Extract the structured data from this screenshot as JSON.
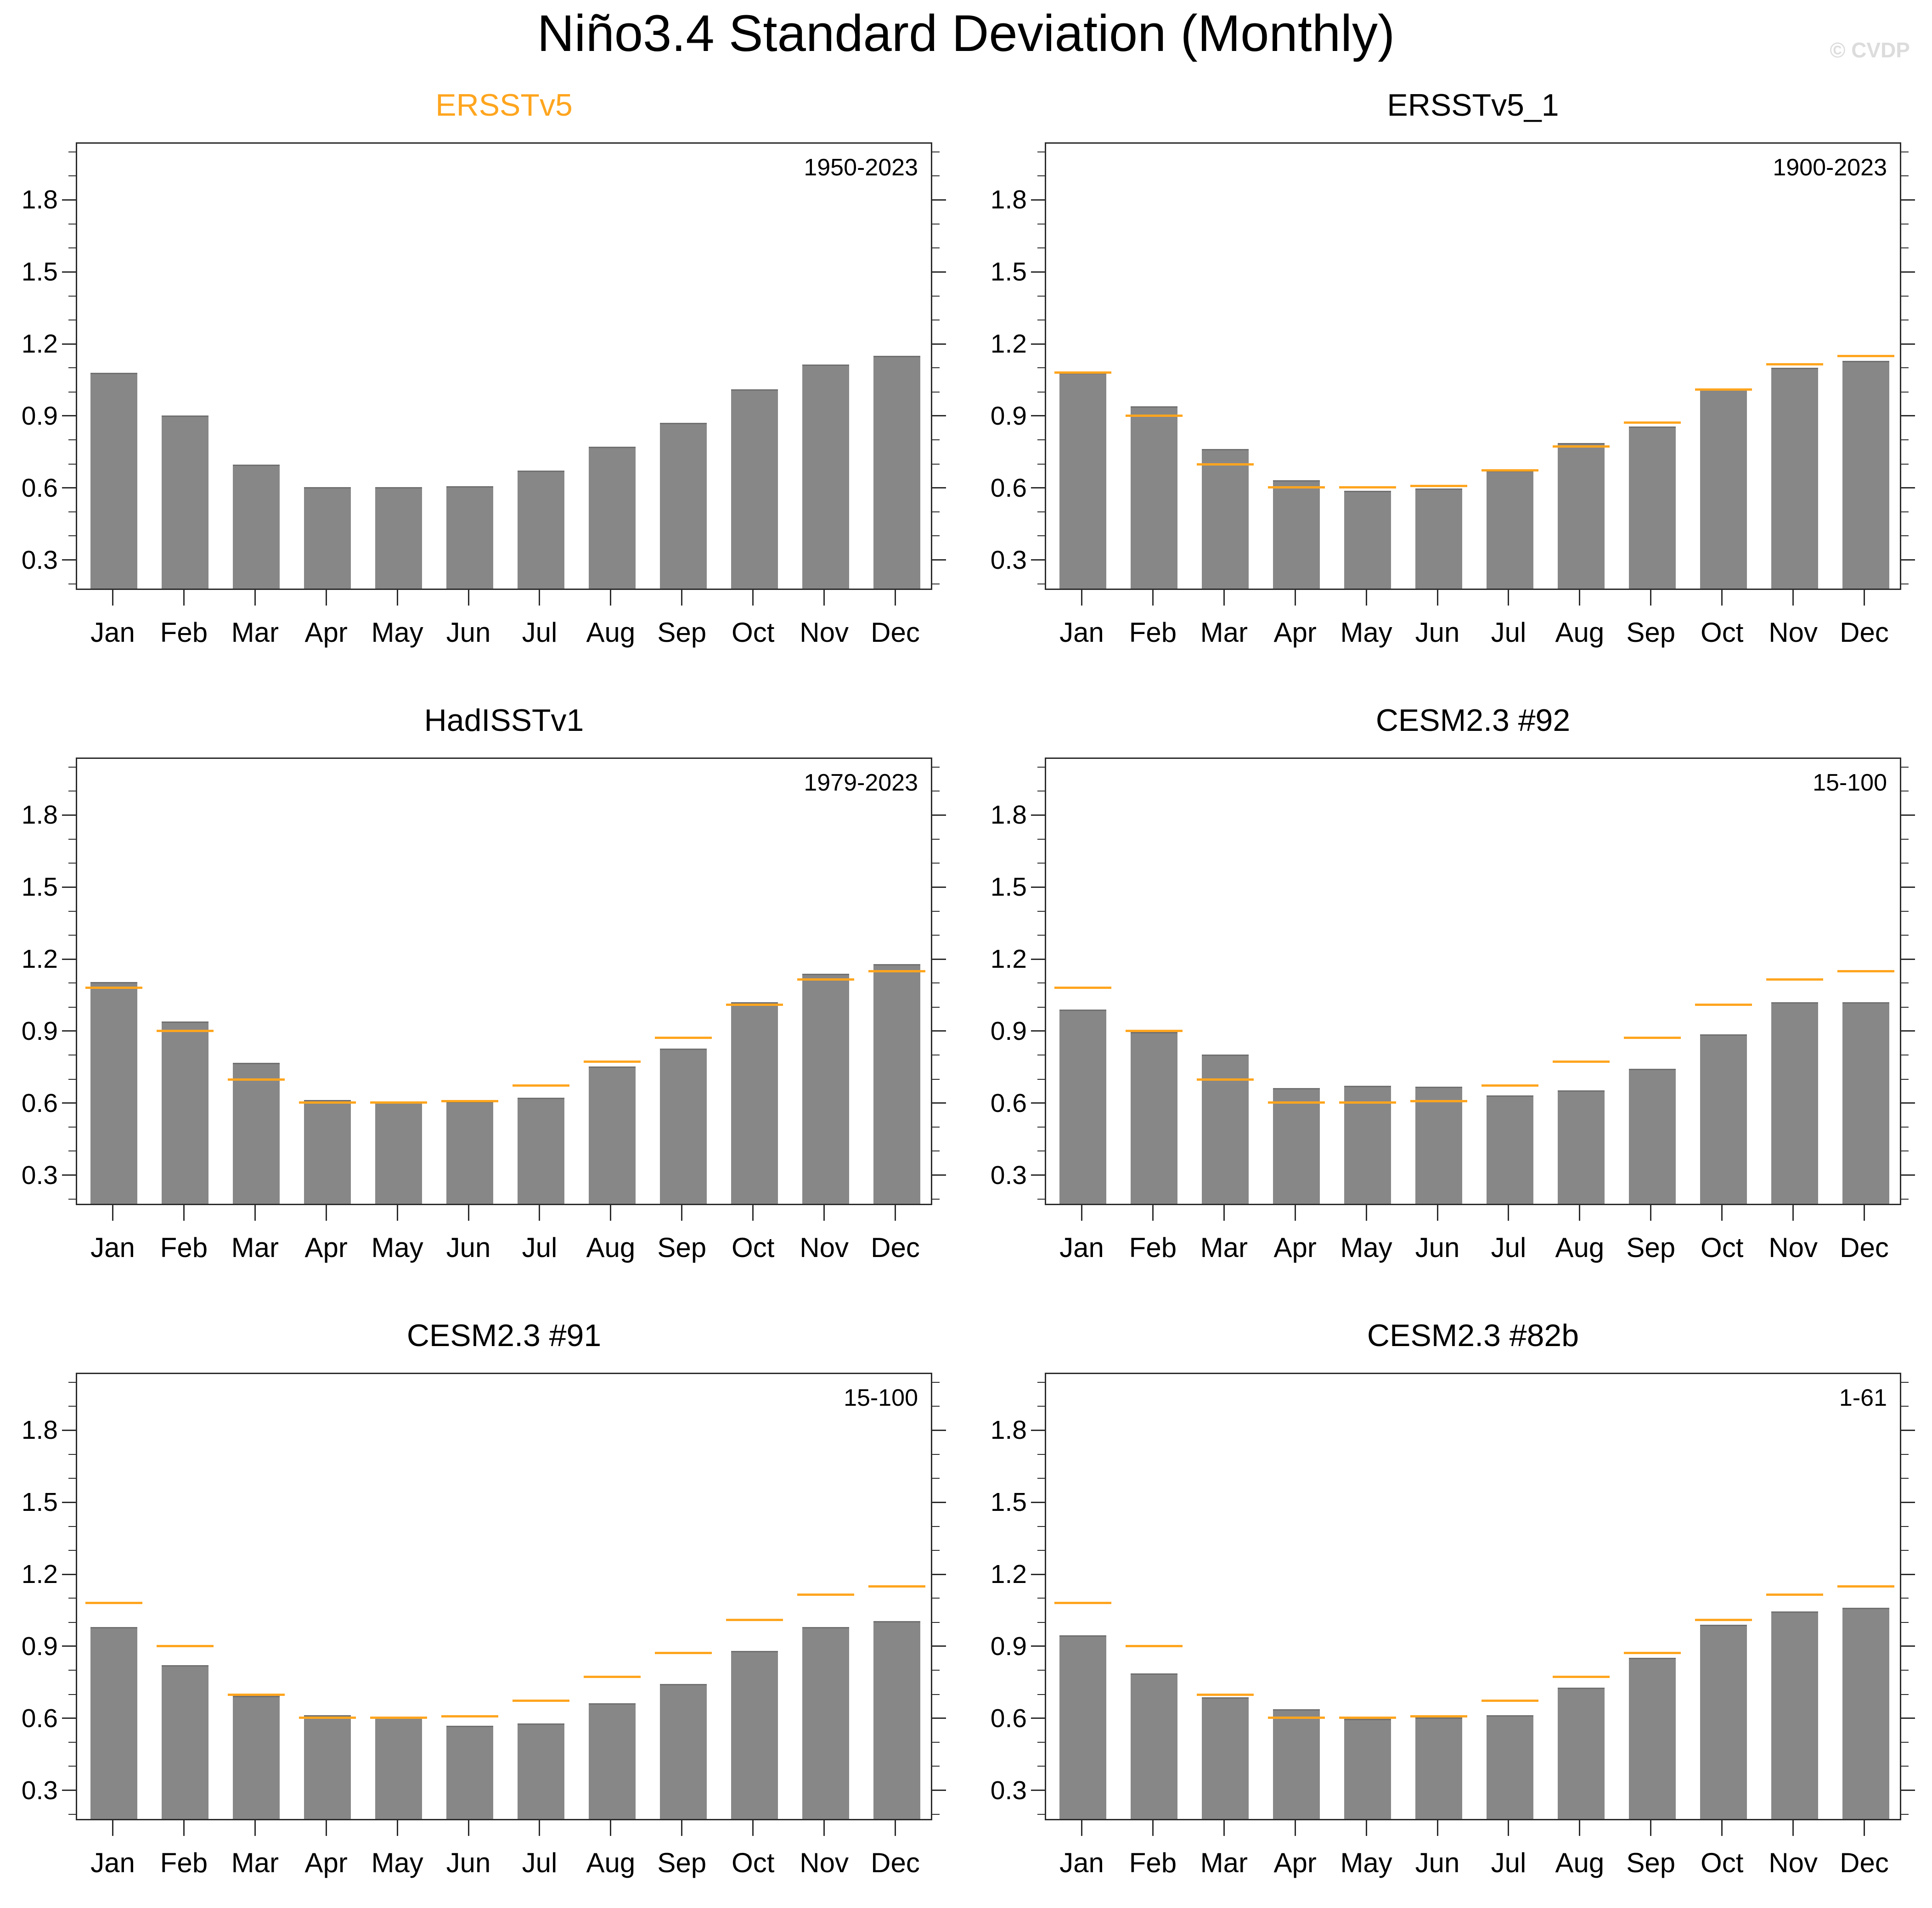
{
  "main_title": "Niño3.4 Standard Deviation (Monthly)",
  "watermark": "© CVDP",
  "colors": {
    "bar_fill": "#878787",
    "bar_edge": "#707070",
    "reference_line": "#FFA51E",
    "reference_title": "#FFA51E",
    "panel_title": "#000000",
    "frame": "#2b2b2b",
    "watermark": "#dcdcdc"
  },
  "months": [
    "Jan",
    "Feb",
    "Mar",
    "Apr",
    "May",
    "Jun",
    "Jul",
    "Aug",
    "Sep",
    "Oct",
    "Nov",
    "Dec"
  ],
  "y_axis": {
    "min": 0.175,
    "max": 2.04,
    "major_ticks": [
      0.3,
      0.6,
      0.9,
      1.2,
      1.5,
      1.8
    ],
    "major_tick_labels": [
      "0.3",
      "0.6",
      "0.9",
      "1.2",
      "1.5",
      "1.8"
    ],
    "minor_tick_step": 0.1,
    "grid": false
  },
  "reference_series_name": "ERSSTv5",
  "chart_data": [
    {
      "type": "bar",
      "title": "ERSSTv5",
      "title_is_reference": true,
      "period": "1950-2023",
      "categories": [
        "Jan",
        "Feb",
        "Mar",
        "Apr",
        "May",
        "Jun",
        "Jul",
        "Aug",
        "Sep",
        "Oct",
        "Nov",
        "Dec"
      ],
      "values": [
        1.08,
        0.9,
        0.695,
        0.6,
        0.6,
        0.605,
        0.67,
        0.77,
        0.87,
        1.01,
        1.115,
        1.15
      ],
      "reference_values": null,
      "ylim": [
        0.175,
        2.04
      ]
    },
    {
      "type": "bar",
      "title": "ERSSTv5_1",
      "title_is_reference": false,
      "period": "1900-2023",
      "categories": [
        "Jan",
        "Feb",
        "Mar",
        "Apr",
        "May",
        "Jun",
        "Jul",
        "Aug",
        "Sep",
        "Oct",
        "Nov",
        "Dec"
      ],
      "values": [
        1.08,
        0.94,
        0.76,
        0.63,
        0.585,
        0.595,
        0.67,
        0.785,
        0.855,
        1.01,
        1.1,
        1.13
      ],
      "reference_values": [
        1.08,
        0.9,
        0.695,
        0.6,
        0.6,
        0.605,
        0.67,
        0.77,
        0.87,
        1.01,
        1.115,
        1.15
      ],
      "ylim": [
        0.175,
        2.04
      ]
    },
    {
      "type": "bar",
      "title": "HadISSTv1",
      "title_is_reference": false,
      "period": "1979-2023",
      "categories": [
        "Jan",
        "Feb",
        "Mar",
        "Apr",
        "May",
        "Jun",
        "Jul",
        "Aug",
        "Sep",
        "Oct",
        "Nov",
        "Dec"
      ],
      "values": [
        1.105,
        0.94,
        0.765,
        0.61,
        0.605,
        0.605,
        0.62,
        0.75,
        0.825,
        1.02,
        1.14,
        1.18
      ],
      "reference_values": [
        1.08,
        0.9,
        0.695,
        0.6,
        0.6,
        0.605,
        0.67,
        0.77,
        0.87,
        1.01,
        1.115,
        1.15
      ],
      "ylim": [
        0.175,
        2.04
      ]
    },
    {
      "type": "bar",
      "title": "CESM2.3 #92",
      "title_is_reference": false,
      "period": "15-100",
      "categories": [
        "Jan",
        "Feb",
        "Mar",
        "Apr",
        "May",
        "Jun",
        "Jul",
        "Aug",
        "Sep",
        "Oct",
        "Nov",
        "Dec"
      ],
      "values": [
        0.99,
        0.895,
        0.8,
        0.66,
        0.67,
        0.665,
        0.63,
        0.65,
        0.74,
        0.885,
        1.02,
        1.02
      ],
      "reference_values": [
        1.08,
        0.9,
        0.695,
        0.6,
        0.6,
        0.605,
        0.67,
        0.77,
        0.87,
        1.01,
        1.115,
        1.15
      ],
      "ylim": [
        0.175,
        2.04
      ]
    },
    {
      "type": "bar",
      "title": "CESM2.3 #91",
      "title_is_reference": false,
      "period": "15-100",
      "categories": [
        "Jan",
        "Feb",
        "Mar",
        "Apr",
        "May",
        "Jun",
        "Jul",
        "Aug",
        "Sep",
        "Oct",
        "Nov",
        "Dec"
      ],
      "values": [
        0.98,
        0.82,
        0.69,
        0.61,
        0.6,
        0.565,
        0.575,
        0.66,
        0.74,
        0.88,
        0.98,
        1.005
      ],
      "reference_values": [
        1.08,
        0.9,
        0.695,
        0.6,
        0.6,
        0.605,
        0.67,
        0.77,
        0.87,
        1.01,
        1.115,
        1.15
      ],
      "ylim": [
        0.175,
        2.04
      ]
    },
    {
      "type": "bar",
      "title": "CESM2.3 #82b",
      "title_is_reference": false,
      "period": "1-61",
      "categories": [
        "Jan",
        "Feb",
        "Mar",
        "Apr",
        "May",
        "Jun",
        "Jul",
        "Aug",
        "Sep",
        "Oct",
        "Nov",
        "Dec"
      ],
      "values": [
        0.945,
        0.785,
        0.685,
        0.635,
        0.595,
        0.6,
        0.61,
        0.725,
        0.85,
        0.99,
        1.045,
        1.06
      ],
      "reference_values": [
        1.08,
        0.9,
        0.695,
        0.6,
        0.6,
        0.605,
        0.67,
        0.77,
        0.87,
        1.01,
        1.115,
        1.15
      ],
      "ylim": [
        0.175,
        2.04
      ]
    }
  ]
}
